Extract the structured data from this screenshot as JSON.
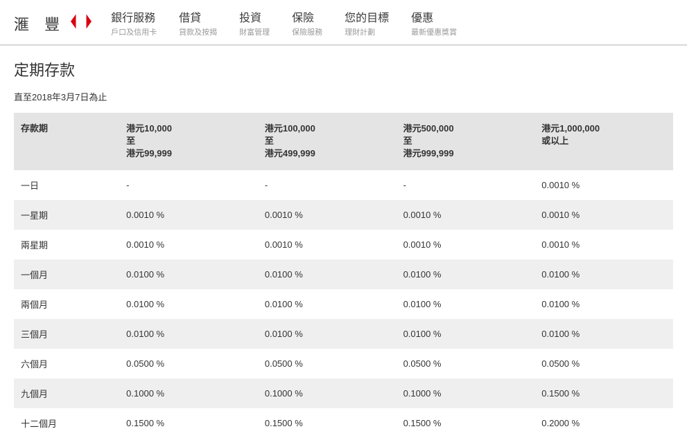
{
  "brand": {
    "name": "滙 豐"
  },
  "nav": [
    {
      "title": "銀行服務",
      "sub": "戶口及信用卡"
    },
    {
      "title": "借貸",
      "sub": "貸款及按揭"
    },
    {
      "title": "投資",
      "sub": "財富管理"
    },
    {
      "title": "保險",
      "sub": "保險服務"
    },
    {
      "title": "您的目標",
      "sub": "理財計劃"
    },
    {
      "title": "優惠",
      "sub": "最新優惠獎賞"
    }
  ],
  "page": {
    "title": "定期存款",
    "subtitle": "直至2018年3月7日為止"
  },
  "table": {
    "columns": [
      {
        "l1": "存款期",
        "l2": "",
        "l3": ""
      },
      {
        "l1": "港元10,000",
        "l2": "至",
        "l3": "港元99,999"
      },
      {
        "l1": "港元100,000",
        "l2": "至",
        "l3": "港元499,999"
      },
      {
        "l1": "港元500,000",
        "l2": "至",
        "l3": "港元999,999"
      },
      {
        "l1": "港元1,000,000",
        "l2": "或以上",
        "l3": ""
      }
    ],
    "rows": [
      {
        "period": "一日",
        "c1": "-",
        "c2": "-",
        "c3": "-",
        "c4": "0.0010 %"
      },
      {
        "period": "一星期",
        "c1": "0.0010 %",
        "c2": "0.0010 %",
        "c3": "0.0010 %",
        "c4": "0.0010 %"
      },
      {
        "period": "兩星期",
        "c1": "0.0010 %",
        "c2": "0.0010 %",
        "c3": "0.0010 %",
        "c4": "0.0010 %"
      },
      {
        "period": "一個月",
        "c1": "0.0100 %",
        "c2": "0.0100 %",
        "c3": "0.0100 %",
        "c4": "0.0100 %"
      },
      {
        "period": "兩個月",
        "c1": "0.0100 %",
        "c2": "0.0100 %",
        "c3": "0.0100 %",
        "c4": "0.0100 %"
      },
      {
        "period": "三個月",
        "c1": "0.0100 %",
        "c2": "0.0100 %",
        "c3": "0.0100 %",
        "c4": "0.0100 %"
      },
      {
        "period": "六個月",
        "c1": "0.0500 %",
        "c2": "0.0500 %",
        "c3": "0.0500 %",
        "c4": "0.0500 %"
      },
      {
        "period": "九個月",
        "c1": "0.1000 %",
        "c2": "0.1000 %",
        "c3": "0.1000 %",
        "c4": "0.1500 %"
      },
      {
        "period": "十二個月",
        "c1": "0.1500 %",
        "c2": "0.1500 %",
        "c3": "0.1500 %",
        "c4": "0.2000 %"
      }
    ],
    "header_bg": "#e4e4e4",
    "row_alt_bg": "#efefef",
    "row_bg": "#ffffff",
    "text_color": "#333333"
  }
}
